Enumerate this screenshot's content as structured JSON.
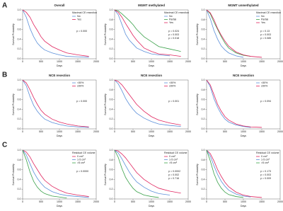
{
  "panel_labels": [
    "A",
    "B",
    "C"
  ],
  "chart_data": [
    {
      "type": "line",
      "title": "Overall",
      "xlabel": "Days",
      "ylabel": "Survival Probability",
      "legend_title": "Maximal CE resection",
      "x": [
        0,
        100,
        200,
        300,
        400,
        500,
        600,
        800,
        1000,
        1200,
        1500,
        1800
      ],
      "series": [
        {
          "name": "No",
          "color": "#5b8fd9",
          "values": [
            1,
            0.85,
            0.62,
            0.45,
            0.32,
            0.24,
            0.18,
            0.12,
            0.08,
            0.05,
            0.04,
            0.03
          ]
        },
        {
          "name": "Yes",
          "color": "#e0245e",
          "values": [
            1,
            0.95,
            0.85,
            0.7,
            0.58,
            0.45,
            0.36,
            0.25,
            0.18,
            0.12,
            0.08,
            0.05
          ]
        }
      ],
      "annotations": [
        "p = 0.000"
      ],
      "xlim": [
        0,
        2000
      ],
      "ylim": [
        0,
        1
      ],
      "xticks": [
        0,
        500,
        1000,
        1500,
        2000
      ],
      "yticks": [
        {
          "value": 0,
          "label": "0.0"
        },
        0.2,
        0.4,
        0.6,
        0.8,
        {
          "value": 1,
          "label": "1.0"
        }
      ]
    },
    {
      "type": "line",
      "title": "MGMT methylated",
      "xlabel": "Days",
      "ylabel": "Survival Probability",
      "legend_title": "Maximal CE resection",
      "x": [
        0,
        100,
        200,
        300,
        400,
        500,
        600,
        800,
        1000,
        1200,
        1500,
        1800
      ],
      "series": [
        {
          "name": "No",
          "color": "#5b8fd9",
          "values": [
            1,
            0.9,
            0.7,
            0.5,
            0.38,
            0.3,
            0.22,
            0.15,
            0.1,
            0.08,
            0.06,
            null
          ]
        },
        {
          "name": "Partial",
          "color": "#3aa14a",
          "values": [
            1,
            0.98,
            0.92,
            0.85,
            0.78,
            0.7,
            0.6,
            0.45,
            0.35,
            0.25,
            0.2,
            0.15
          ]
        },
        {
          "name": "Yes",
          "color": "#e0245e",
          "values": [
            1,
            0.95,
            0.85,
            0.72,
            0.6,
            0.48,
            0.38,
            0.22,
            0.15,
            0.1,
            0.08,
            0.05
          ]
        }
      ],
      "annotations": [
        "p = 0.024",
        "p = 0.003",
        "p = 0.018"
      ],
      "xlim": [
        0,
        2000
      ],
      "ylim": [
        0,
        1
      ],
      "xticks": [
        0,
        500,
        1000,
        1500,
        2000
      ],
      "yticks": [
        {
          "value": 0,
          "label": "0.0"
        },
        0.2,
        0.4,
        0.6,
        0.8,
        {
          "value": 1,
          "label": "1.0"
        }
      ]
    },
    {
      "type": "line",
      "title": "MGMT unmethylated",
      "xlabel": "Days",
      "ylabel": "Survival Probability",
      "legend_title": "Maximal CE resection",
      "x": [
        0,
        100,
        200,
        300,
        400,
        500,
        600,
        800,
        1000,
        1200,
        1500,
        1800
      ],
      "series": [
        {
          "name": "No",
          "color": "#5b8fd9",
          "values": [
            1,
            0.82,
            0.58,
            0.4,
            0.26,
            0.18,
            0.12,
            0.06,
            0.03,
            null,
            null,
            null
          ]
        },
        {
          "name": "Partial",
          "color": "#3aa14a",
          "values": [
            1,
            0.92,
            0.75,
            0.6,
            0.45,
            0.32,
            0.22,
            0.12,
            0.07,
            0.05,
            null,
            null
          ]
        },
        {
          "name": "Yes",
          "color": "#e0245e",
          "values": [
            1,
            0.94,
            0.8,
            0.62,
            0.48,
            0.36,
            0.26,
            0.14,
            0.08,
            0.05,
            0.03,
            null
          ]
        }
      ],
      "annotations": [
        "p = 0.13",
        "p = 0.003",
        "p = 0.085"
      ],
      "xlim": [
        0,
        2000
      ],
      "ylim": [
        0,
        1
      ],
      "xticks": [
        0,
        500,
        1000,
        1500,
        2000
      ],
      "yticks": [
        {
          "value": 0,
          "label": "0.0"
        },
        0.2,
        0.4,
        0.6,
        0.8,
        {
          "value": 1,
          "label": "1.0"
        }
      ]
    },
    {
      "type": "line",
      "title": "NCE resection",
      "xlabel": "Days",
      "ylabel": "Survival Probability",
      "legend_title": "",
      "x": [
        0,
        100,
        200,
        300,
        400,
        500,
        600,
        800,
        1000,
        1200,
        1500,
        1800
      ],
      "series": [
        {
          "name": "<50%",
          "color": "#5b8fd9",
          "values": [
            1,
            0.88,
            0.66,
            0.48,
            0.36,
            0.27,
            0.2,
            0.13,
            0.09,
            0.06,
            0.04,
            0.03
          ]
        },
        {
          "name": "≥50%",
          "color": "#e0245e",
          "values": [
            1,
            0.94,
            0.8,
            0.64,
            0.5,
            0.38,
            0.3,
            0.2,
            0.14,
            0.1,
            0.06,
            0.04
          ]
        }
      ],
      "annotations": [
        "p = 0.000"
      ],
      "xlim": [
        0,
        2000
      ],
      "ylim": [
        0,
        1
      ],
      "xticks": [
        0,
        500,
        1000,
        1500,
        2000
      ],
      "yticks": [
        {
          "value": 0,
          "label": "0.0"
        },
        0.2,
        0.4,
        0.6,
        0.8,
        {
          "value": 1,
          "label": "1.0"
        }
      ]
    },
    {
      "type": "line",
      "title": "NCE resection",
      "xlabel": "Days",
      "ylabel": "Survival Probability",
      "legend_title": "",
      "x": [
        0,
        100,
        200,
        300,
        400,
        500,
        600,
        800,
        1000,
        1200,
        1500,
        1800
      ],
      "series": [
        {
          "name": "<50%",
          "color": "#5b8fd9",
          "values": [
            1,
            0.92,
            0.78,
            0.62,
            0.5,
            0.4,
            0.32,
            0.22,
            0.15,
            0.1,
            0.07,
            0.05
          ]
        },
        {
          "name": "≥50%",
          "color": "#e0245e",
          "values": [
            1,
            0.97,
            0.9,
            0.8,
            0.7,
            0.6,
            0.5,
            0.36,
            0.25,
            0.18,
            0.12,
            0.08
          ]
        }
      ],
      "annotations": [
        "p = 0.001"
      ],
      "xlim": [
        0,
        2000
      ],
      "ylim": [
        0,
        1
      ],
      "xticks": [
        0,
        500,
        1000,
        1500,
        2000
      ],
      "yticks": [
        {
          "value": 0,
          "label": "0.0"
        },
        0.2,
        0.4,
        0.6,
        0.8,
        {
          "value": 1,
          "label": "1.0"
        }
      ]
    },
    {
      "type": "line",
      "title": "NCE resection",
      "xlabel": "Days",
      "ylabel": "Survival Probability",
      "legend_title": "",
      "x": [
        0,
        100,
        200,
        300,
        400,
        500,
        600,
        800,
        1000,
        1200,
        1500,
        1800
      ],
      "series": [
        {
          "name": "<50%",
          "color": "#5b8fd9",
          "values": [
            1,
            0.86,
            0.62,
            0.44,
            0.3,
            0.2,
            0.14,
            0.08,
            0.05,
            0.03,
            null,
            null
          ]
        },
        {
          "name": "≥50%",
          "color": "#e0245e",
          "values": [
            1,
            0.9,
            0.7,
            0.5,
            0.36,
            0.25,
            0.18,
            0.1,
            0.06,
            0.04,
            0.03,
            null
          ]
        }
      ],
      "annotations": [
        "p = 0.094"
      ],
      "xlim": [
        0,
        2000
      ],
      "ylim": [
        0,
        1
      ],
      "xticks": [
        0,
        500,
        1000,
        1500,
        2000
      ],
      "yticks": [
        {
          "value": 0,
          "label": "0.0"
        },
        0.2,
        0.4,
        0.6,
        0.8,
        {
          "value": 1,
          "label": "1.0"
        }
      ]
    },
    {
      "type": "line",
      "title": "",
      "xlabel": "Days",
      "ylabel": "Survival Probability",
      "legend_title": "Residual CE volume",
      "x": [
        0,
        100,
        200,
        300,
        400,
        500,
        600,
        800,
        1000,
        1200,
        1500,
        1800
      ],
      "series": [
        {
          "name": "0 cm³",
          "color": "#e0245e",
          "values": [
            1,
            0.96,
            0.86,
            0.72,
            0.6,
            0.48,
            0.38,
            0.26,
            0.18,
            0.12,
            0.08,
            0.05
          ]
        },
        {
          "name": "1-5 cm³",
          "color": "#5b8fd9",
          "values": [
            1,
            0.9,
            0.72,
            0.55,
            0.42,
            0.32,
            0.24,
            0.15,
            0.1,
            0.07,
            0.05,
            0.03
          ]
        },
        {
          "name": ">5 cm³",
          "color": "#3aa14a",
          "values": [
            1,
            0.8,
            0.55,
            0.36,
            0.24,
            0.16,
            0.11,
            0.06,
            0.04,
            0.02,
            null,
            null
          ]
        }
      ],
      "annotations": [
        "p = 0.0000"
      ],
      "xlim": [
        0,
        2000
      ],
      "ylim": [
        0,
        1
      ],
      "xticks": [
        0,
        500,
        1000,
        1500,
        2000
      ],
      "yticks": [
        {
          "value": 0,
          "label": "0.0"
        },
        0.2,
        0.4,
        0.6,
        0.8,
        {
          "value": 1,
          "label": "1.0"
        }
      ]
    },
    {
      "type": "line",
      "title": "",
      "xlabel": "Days",
      "ylabel": "Survival Probability",
      "legend_title": "Residual CE volume",
      "x": [
        0,
        100,
        200,
        300,
        400,
        500,
        600,
        800,
        1000,
        1200,
        1500,
        1800
      ],
      "series": [
        {
          "name": "0 cm³",
          "color": "#e0245e",
          "values": [
            1,
            0.98,
            0.92,
            0.84,
            0.74,
            0.64,
            0.54,
            0.4,
            0.3,
            0.22,
            0.16,
            0.12
          ]
        },
        {
          "name": "1-5 cm³",
          "color": "#5b8fd9",
          "values": [
            1,
            0.94,
            0.82,
            0.68,
            0.55,
            0.44,
            0.35,
            0.24,
            0.16,
            0.11,
            0.08,
            null
          ]
        },
        {
          "name": ">5 cm³",
          "color": "#3aa14a",
          "values": [
            1,
            0.85,
            0.62,
            0.44,
            0.32,
            0.22,
            0.15,
            0.08,
            0.05,
            0.03,
            null,
            null
          ]
        }
      ],
      "annotations": [
        "p = 0.0002",
        "p = 0.002",
        "p = 0.716"
      ],
      "xlim": [
        0,
        2000
      ],
      "ylim": [
        0,
        1
      ],
      "xticks": [
        0,
        500,
        1000,
        1500,
        2000
      ],
      "yticks": [
        {
          "value": 0,
          "label": "0.0"
        },
        0.2,
        0.4,
        0.6,
        0.8,
        {
          "value": 1,
          "label": "1.0"
        }
      ]
    },
    {
      "type": "line",
      "title": "",
      "xlabel": "Days",
      "ylabel": "Survival Probability",
      "legend_title": "Residual CE volume",
      "x": [
        0,
        100,
        200,
        300,
        400,
        500,
        600,
        800,
        1000,
        1200,
        1500,
        1800
      ],
      "series": [
        {
          "name": "0 cm³",
          "color": "#e0245e",
          "values": [
            1,
            0.93,
            0.78,
            0.6,
            0.46,
            0.34,
            0.25,
            0.14,
            0.08,
            0.05,
            0.03,
            null
          ]
        },
        {
          "name": "1-5 cm³",
          "color": "#5b8fd9",
          "values": [
            1,
            0.88,
            0.68,
            0.5,
            0.36,
            0.26,
            0.18,
            0.1,
            0.06,
            0.04,
            null,
            null
          ]
        },
        {
          "name": ">5 cm³",
          "color": "#3aa14a",
          "values": [
            1,
            0.78,
            0.52,
            0.34,
            0.22,
            0.14,
            0.09,
            0.05,
            0.03,
            null,
            null,
            null
          ]
        }
      ],
      "annotations": [
        "p = 0.173",
        "p = 0.003",
        "p = 0.009"
      ],
      "xlim": [
        0,
        2000
      ],
      "ylim": [
        0,
        1
      ],
      "xticks": [
        0,
        500,
        1000,
        1500,
        2000
      ],
      "yticks": [
        {
          "value": 0,
          "label": "0.0"
        },
        0.2,
        0.4,
        0.6,
        0.8,
        {
          "value": 1,
          "label": "1.0"
        }
      ]
    }
  ]
}
